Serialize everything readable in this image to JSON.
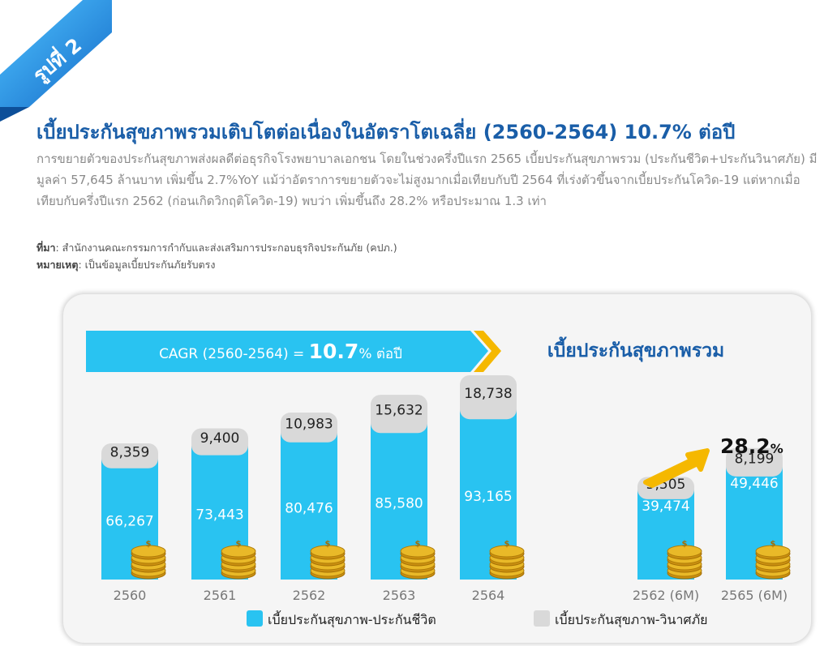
{
  "badge": {
    "label": "รูปที่ 2"
  },
  "title": "เบี้ยประกันสุขภาพรวมเติบโตต่อเนื่องในอัตราโตเฉลี่ย (2560-2564) 10.7% ต่อปี",
  "body_text": "การขยายตัวของประกันสุขภาพส่งผลดีต่อธุรกิจโรงพยาบาลเอกชน โดยในช่วงครึ่งปีแรก 2565 เบี้ยประกันสุขภาพรวม (ประกันชีวิต+ประกันวินาศภัย) มีมูลค่า 57,645 ล้านบาท เพิ่มขึ้น 2.7%YoY แม้ว่าอัตราการขยายตัวจะไม่สูงมากเมื่อเทียบกับปี 2564 ที่เร่งตัวขึ้นจากเบี้ยประกันโควิด-19 แต่หากเมื่อเทียบกับครึ่งปีแรก 2562 (ก่อนเกิดวิกฤติโควิด-19) พบว่า เพิ่มขึ้นถึง 28.2% หรือประมาณ 1.3 เท่า",
  "notes": {
    "source_label": "ที่มา",
    "source_text": ": สำนักงานคณะกรรมการกำกับและส่งเสริมการประกอบธุรกิจประกันภัย (คปภ.)",
    "remark_label": "หมายเหตุ",
    "remark_text": ": เป็นข้อมูลเบี้ยประกันภัยรับตรง"
  },
  "colors": {
    "life": "#29c3f1",
    "nonlife": "#d9d9d9",
    "ribbon": "#1f8fe0",
    "title": "#1a5ea8",
    "arrow": "#f5b800",
    "coin": "#e9b928"
  },
  "chart_data": {
    "type": "bar",
    "stacked": true,
    "title": "เบี้ยประกันสุขภาพรวม",
    "cagr": {
      "prefix": "CAGR (2560-2564) = ",
      "value": "10.7",
      "suffix": "% ต่อปี"
    },
    "growth": {
      "value": "28.2",
      "unit": "%"
    },
    "categories": [
      "2560",
      "2561",
      "2562",
      "2563",
      "2564",
      "2562 (6M)",
      "2565 (6M)"
    ],
    "series": [
      {
        "name": "เบี้ยประกันสุขภาพ-ประกันชีวิต",
        "values": [
          66267,
          73443,
          80476,
          85580,
          93165,
          39474,
          49446
        ]
      },
      {
        "name": "เบี้ยประกันสุขภาพ-วินาศภัย",
        "values": [
          8359,
          9400,
          10983,
          15632,
          18738,
          5505,
          8199
        ]
      }
    ],
    "icon": "coin-stack-icon",
    "legend_position": "bottom"
  }
}
